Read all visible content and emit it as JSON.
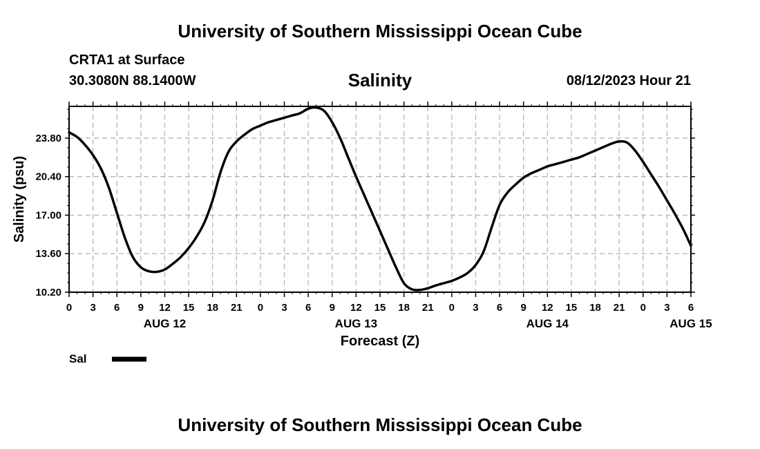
{
  "header": {
    "title": "University of Southern Mississippi Ocean Cube",
    "station": "CRTA1 at Surface",
    "coords": "30.3080N  88.1400W",
    "datetime": "08/12/2023 Hour 21"
  },
  "footer": {
    "title": "University of Southern Mississippi Ocean Cube"
  },
  "colors": {
    "line": "#000000",
    "grid": "#b4b4b4",
    "background": "#ffffff"
  },
  "chart_data": {
    "type": "line",
    "title": "Salinity",
    "xlabel": "Forecast (Z)",
    "ylabel": "Salinity (psu)",
    "xlim": [
      0,
      78
    ],
    "ylim": [
      10.2,
      26.6
    ],
    "yticks": [
      "10.20",
      "13.60",
      "17.00",
      "20.40",
      "23.80"
    ],
    "ytick_values": [
      10.2,
      13.6,
      17.0,
      20.4,
      23.8
    ],
    "xtick_labels": [
      "0",
      "3",
      "6",
      "9",
      "12",
      "15",
      "18",
      "21",
      "0",
      "3",
      "6",
      "9",
      "12",
      "15",
      "18",
      "21",
      "0",
      "3",
      "6",
      "9",
      "12",
      "15",
      "18",
      "21",
      "0",
      "3",
      "6"
    ],
    "day_labels": [
      {
        "label": "AUG 12",
        "x": 12
      },
      {
        "label": "AUG 13",
        "x": 36
      },
      {
        "label": "AUG 14",
        "x": 60
      },
      {
        "label": "AUG 15",
        "x": 78
      }
    ],
    "legend": {
      "label": "Sal",
      "placement": "bottom-left"
    },
    "grid": true,
    "series": [
      {
        "name": "Sal",
        "x": [
          0,
          1,
          2,
          3,
          4,
          5,
          6,
          7,
          8,
          9,
          10,
          11,
          12,
          13,
          14,
          15,
          16,
          17,
          18,
          19,
          20,
          21,
          22,
          23,
          24,
          25,
          26,
          27,
          28,
          29,
          30,
          31,
          32,
          33,
          34,
          35,
          36,
          37,
          38,
          39,
          40,
          41,
          42,
          43,
          44,
          45,
          46,
          47,
          48,
          49,
          50,
          51,
          52,
          53,
          54,
          55,
          56,
          57,
          58,
          59,
          60,
          61,
          62,
          63,
          64,
          65,
          66,
          67,
          68,
          69,
          70,
          71,
          72,
          73,
          74,
          75,
          76,
          77,
          78
        ],
        "values": [
          24.3,
          23.9,
          23.2,
          22.3,
          21.1,
          19.4,
          17.2,
          15.0,
          13.3,
          12.4,
          12.05,
          12.0,
          12.2,
          12.7,
          13.3,
          14.1,
          15.1,
          16.4,
          18.3,
          20.8,
          22.6,
          23.5,
          24.1,
          24.6,
          24.9,
          25.2,
          25.4,
          25.6,
          25.8,
          26.0,
          26.4,
          26.5,
          26.2,
          25.2,
          23.8,
          22.1,
          20.4,
          18.8,
          17.2,
          15.6,
          14.0,
          12.4,
          11.0,
          10.45,
          10.4,
          10.55,
          10.8,
          11.0,
          11.2,
          11.5,
          11.9,
          12.6,
          13.8,
          15.9,
          17.9,
          19.0,
          19.7,
          20.3,
          20.7,
          21.0,
          21.3,
          21.5,
          21.7,
          21.9,
          22.1,
          22.4,
          22.7,
          23.0,
          23.3,
          23.5,
          23.4,
          22.7,
          21.7,
          20.6,
          19.5,
          18.3,
          17.1,
          15.8,
          14.3
        ]
      }
    ]
  }
}
